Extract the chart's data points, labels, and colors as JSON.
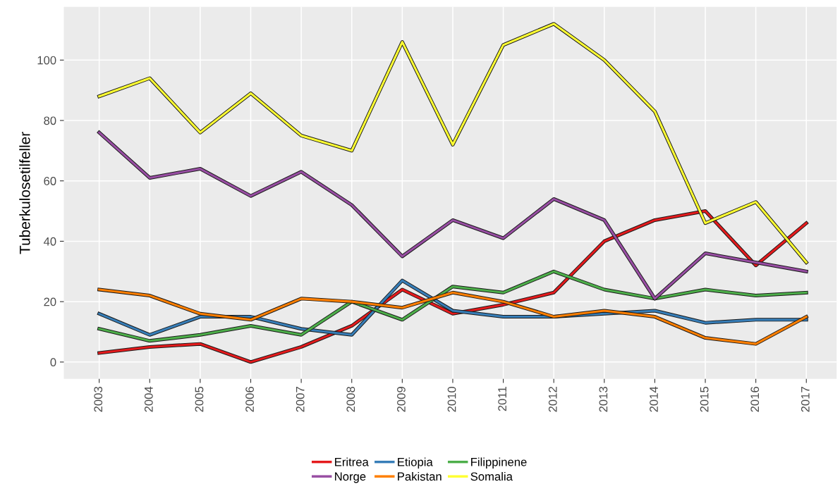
{
  "chart_data": {
    "type": "line",
    "ylabel": "Tuberkulosetilfeller",
    "categories": [
      "2003",
      "2004",
      "2005",
      "2006",
      "2007",
      "2008",
      "2009",
      "2010",
      "2011",
      "2012",
      "2013",
      "2014",
      "2015",
      "2016",
      "2017"
    ],
    "series": [
      {
        "name": "Eritrea",
        "color": "#e41a1c",
        "values": [
          3,
          5,
          6,
          0,
          5,
          12,
          24,
          16,
          19,
          23,
          40,
          47,
          50,
          32,
          46
        ]
      },
      {
        "name": "Etiopia",
        "color": "#377eb8",
        "values": [
          16,
          9,
          15,
          15,
          11,
          9,
          27,
          17,
          15,
          15,
          16,
          17,
          13,
          14,
          14
        ]
      },
      {
        "name": "Filippinene",
        "color": "#4daf4a",
        "values": [
          11,
          7,
          9,
          12,
          9,
          20,
          14,
          25,
          23,
          30,
          24,
          21,
          24,
          22,
          23
        ]
      },
      {
        "name": "Norge",
        "color": "#984ea3",
        "values": [
          76,
          61,
          64,
          55,
          63,
          52,
          35,
          47,
          41,
          54,
          47,
          21,
          36,
          33,
          30
        ]
      },
      {
        "name": "Pakistan",
        "color": "#ff7f00",
        "values": [
          24,
          22,
          16,
          14,
          21,
          20,
          18,
          23,
          20,
          15,
          17,
          15,
          8,
          6,
          15
        ]
      },
      {
        "name": "Somalia",
        "color": "#ffff33",
        "values": [
          88,
          94,
          76,
          89,
          75,
          70,
          106,
          72,
          105,
          112,
          100,
          83,
          46,
          53,
          33
        ]
      }
    ],
    "ylim": [
      -5.6,
      117.6
    ],
    "yticks": [
      0,
      20,
      40,
      60,
      80,
      100
    ],
    "grid": true,
    "legend": "bottom",
    "line_style": "solid",
    "marker": "none"
  }
}
